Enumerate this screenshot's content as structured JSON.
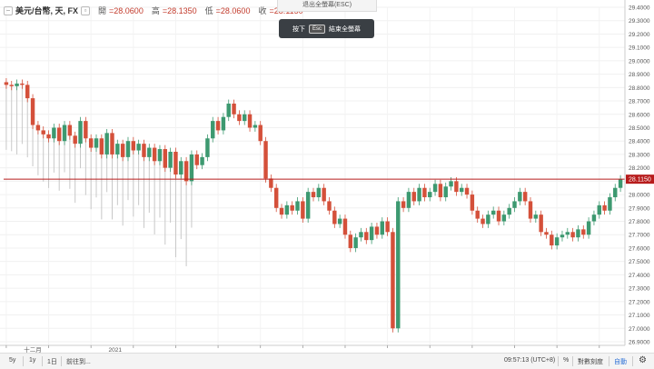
{
  "legend": {
    "symbol": "美元/台幣, 天, FX",
    "open_label": "開",
    "open_value": "=28.0600",
    "high_label": "高",
    "high_value": "=28.1350",
    "low_label": "低",
    "low_value": "=28.0600",
    "close_label": "收",
    "close_value": "=28.1150"
  },
  "fullscreen": {
    "exit_label": "退出全螢幕(ESC)",
    "press": "按下",
    "key": "Esc",
    "end": "結束全螢幕"
  },
  "bottom": {
    "range_5y": "5y",
    "range_1y": "1y",
    "range_1d": "1日",
    "goto": "前往到...",
    "clock": "09:57:13 (UTC+8)",
    "percent": "%",
    "log": "對數刻度",
    "auto": "自動",
    "settings_icon": "gear-icon"
  },
  "colors": {
    "up": "#3d9970",
    "down": "#d4503a",
    "current_line": "#b71c1c",
    "volume": "#c8c8c8"
  },
  "chart_data": {
    "type": "candlestick",
    "symbol": "USD/TWD",
    "ylim": [
      26.9,
      29.4
    ],
    "y_ticks": [
      "29.4000",
      "29.3000",
      "29.2000",
      "29.1000",
      "29.0000",
      "28.9000",
      "28.8000",
      "28.7000",
      "28.6000",
      "28.5000",
      "28.4000",
      "28.3000",
      "28.2000",
      "28.1000",
      "28.0000",
      "27.9000",
      "27.8000",
      "27.7000",
      "27.6000",
      "27.5000",
      "27.4000",
      "27.3000",
      "27.2000",
      "27.1000",
      "27.0000",
      "26.9000"
    ],
    "x_labels": [
      {
        "label": "十二月",
        "index": 4
      },
      {
        "label": "2021",
        "index": 20
      }
    ],
    "current_price": "28.1150",
    "close_series": [
      28.82,
      28.81,
      28.83,
      28.82,
      28.72,
      28.52,
      28.48,
      28.45,
      28.42,
      28.5,
      28.4,
      28.52,
      28.44,
      28.38,
      28.55,
      28.42,
      28.35,
      28.42,
      28.3,
      28.46,
      28.3,
      28.38,
      28.28,
      28.4,
      28.33,
      28.38,
      28.28,
      28.35,
      28.25,
      28.34,
      28.2,
      28.32,
      28.15,
      28.25,
      28.1,
      28.3,
      28.22,
      28.28,
      28.42,
      28.55,
      28.48,
      28.58,
      28.68,
      28.6,
      28.55,
      28.6,
      28.5,
      28.52,
      28.4,
      28.12,
      28.05,
      27.9,
      27.85,
      27.92,
      27.88,
      27.95,
      27.82,
      28.02,
      27.98,
      28.05,
      27.95,
      27.88,
      27.78,
      27.82,
      27.7,
      27.6,
      27.68,
      27.72,
      27.66,
      27.76,
      27.7,
      27.8,
      27.72,
      27.0,
      27.95,
      27.9,
      28.02,
      27.95,
      28.05,
      27.98,
      28.02,
      28.08,
      27.98,
      28.06,
      28.1,
      28.02,
      28.05,
      28.0,
      27.88,
      27.82,
      27.78,
      27.85,
      27.88,
      27.8,
      27.85,
      27.9,
      27.95,
      28.02,
      27.95,
      27.82,
      27.85,
      27.72,
      27.7,
      27.62,
      27.68,
      27.7,
      27.72,
      27.68,
      27.74,
      27.7,
      27.8,
      27.85,
      27.92,
      27.88,
      27.98,
      28.05,
      28.115
    ],
    "volume_heights": [
      0.55,
      0.55,
      0.6,
      0.5,
      0.5,
      0.35,
      0.38,
      0.4,
      0.42,
      0.38,
      0.42,
      0.4,
      0.45,
      0.5,
      0.4,
      0.48,
      0.52,
      0.5,
      0.55,
      0.5,
      0.55,
      0.52,
      0.58,
      0.5,
      0.56,
      0.52,
      0.6,
      0.55,
      0.62,
      0.58,
      0.65,
      0.6,
      0.7,
      0.66,
      0.72,
      0.62
    ]
  }
}
